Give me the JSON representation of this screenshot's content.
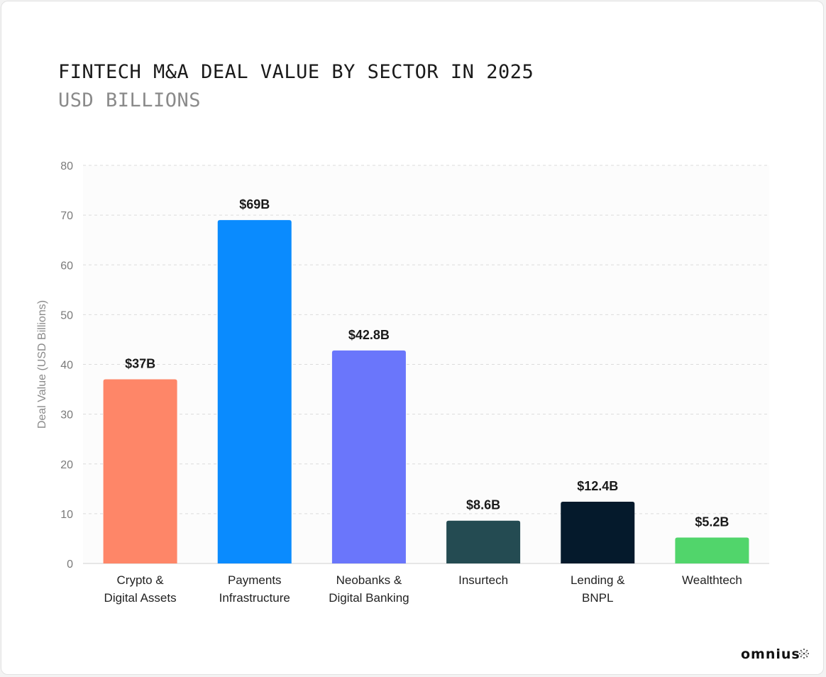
{
  "chart_data": {
    "type": "bar",
    "title": "FINTECH M&A DEAL VALUE BY SECTOR IN 2025",
    "subtitle": "USD BILLIONS",
    "xlabel": "",
    "ylabel": "Deal Value (USD Billions)",
    "ylim": [
      0,
      80
    ],
    "yticks": [
      0,
      10,
      20,
      30,
      40,
      50,
      60,
      70,
      80
    ],
    "grid": true,
    "categories": [
      [
        "Crypto &",
        "Digital Assets"
      ],
      [
        "Payments",
        "Infrastructure"
      ],
      [
        "Neobanks &",
        "Digital Banking"
      ],
      [
        "Insurtech"
      ],
      [
        "Lending &",
        "BNPL"
      ],
      [
        "Wealthtech"
      ]
    ],
    "values": [
      37,
      69,
      42.8,
      8.6,
      12.4,
      5.2
    ],
    "data_labels": [
      "$37B",
      "$69B",
      "$42.8B",
      "$8.6B",
      "$12.4B",
      "$5.2B"
    ],
    "colors": [
      "#fe8668",
      "#0a8bfe",
      "#6a76fb",
      "#244b52",
      "#051a2c",
      "#51d56b"
    ]
  },
  "branding": {
    "logo_text": "omnius"
  }
}
